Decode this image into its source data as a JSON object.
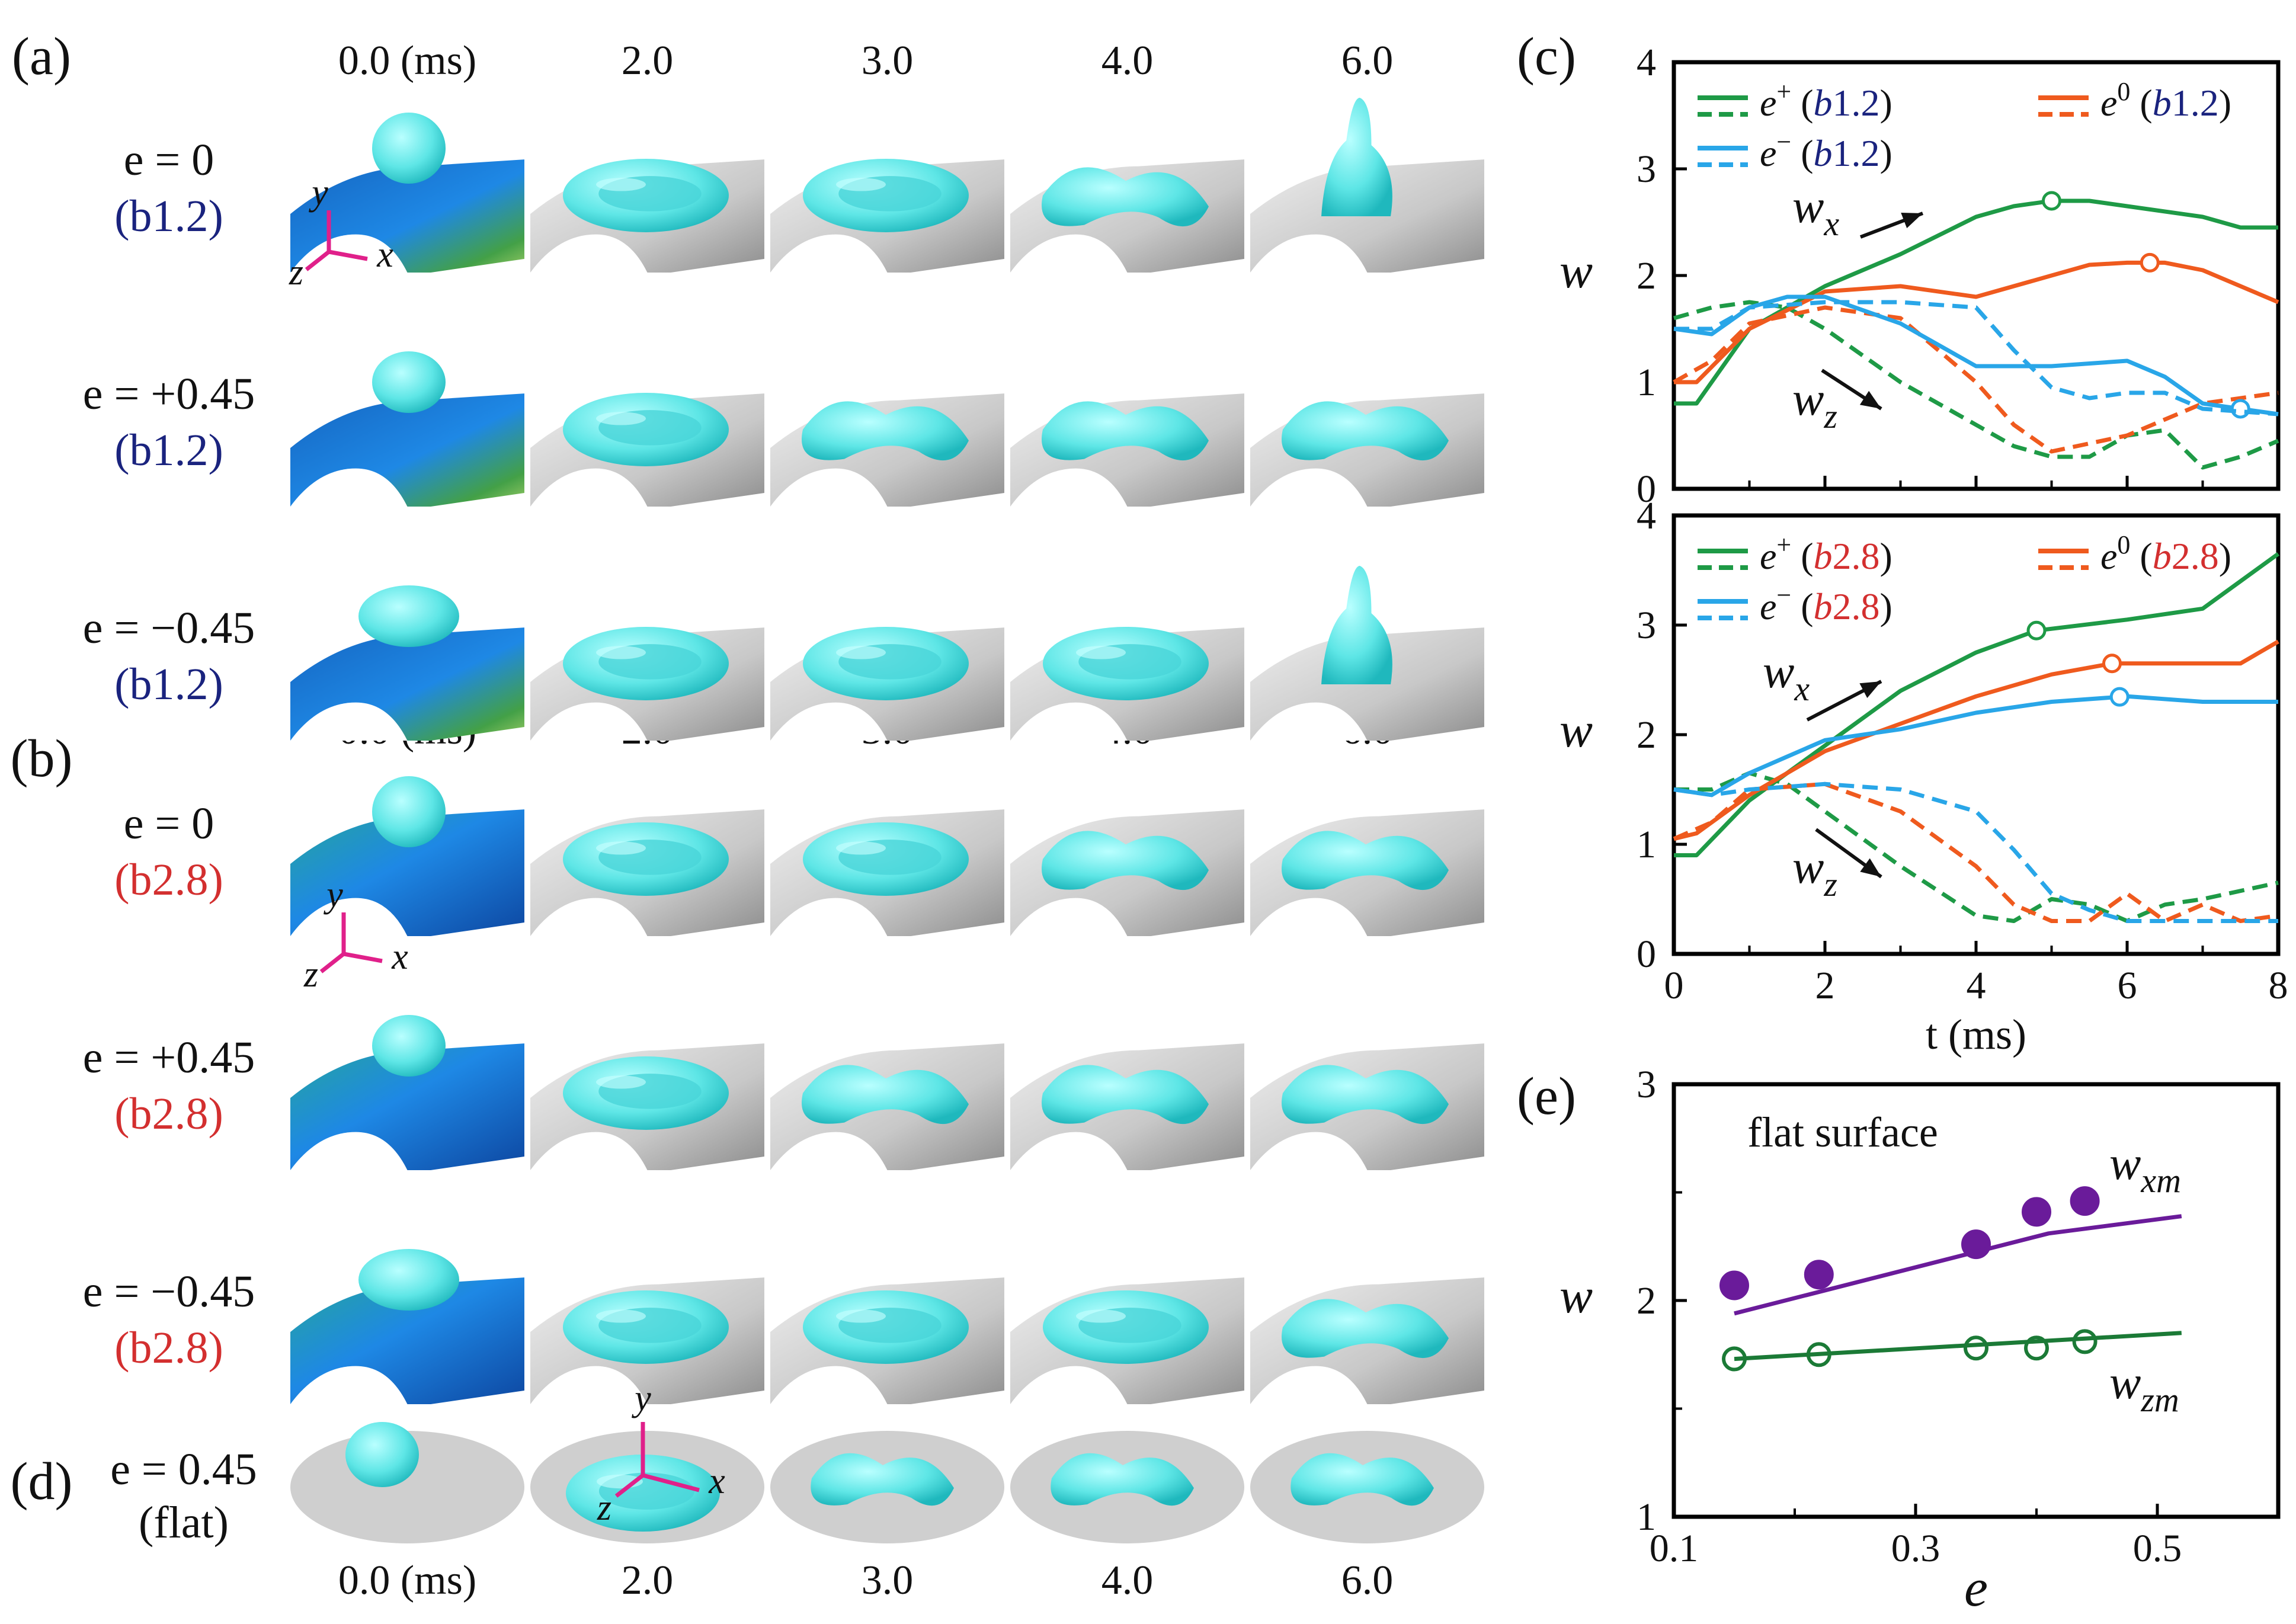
{
  "panels": {
    "a": "(a)",
    "b": "(b)",
    "c": "(c)",
    "d": "(d)",
    "e": "(e)"
  },
  "time_headers": [
    "0.0 (ms)",
    "2.0",
    "3.0",
    "4.0",
    "6.0"
  ],
  "rows_a": [
    {
      "eq": "e = 0",
      "sub": "(b1.2)",
      "sub_code": "b1.2"
    },
    {
      "eq": "e = +0.45",
      "sub": "(b1.2)",
      "sub_code": "b1.2"
    },
    {
      "eq": "e = −0.45",
      "sub": "(b1.2)",
      "sub_code": "b1.2"
    }
  ],
  "rows_b": [
    {
      "eq": "e = 0",
      "sub": "(b2.8)",
      "sub_code": "b2.8"
    },
    {
      "eq": "e = +0.45",
      "sub": "(b2.8)",
      "sub_code": "b2.8"
    },
    {
      "eq": "e = −0.45",
      "sub": "(b2.8)",
      "sub_code": "b2.8"
    }
  ],
  "row_d": {
    "eq": "e = 0.45",
    "sub": "(flat)"
  },
  "axes_labels": {
    "x": "x",
    "y": "y",
    "z": "z"
  },
  "colors": {
    "green": "#1e9a46",
    "orange": "#ef5a1e",
    "blue": "#29a6e8",
    "purple": "#6a1b9a",
    "dark_green": "#1b7a36",
    "drop": "#5ee6e6",
    "cylinder": "#cfcfcf",
    "label_blue": "#1a237e",
    "label_red": "#d32f2f"
  },
  "chart_data": [
    {
      "type": "line",
      "panel": "(c) top",
      "ylabel": "w",
      "xlim": [
        0,
        8
      ],
      "ylim": [
        0,
        4
      ],
      "xticks": [
        "0",
        "2",
        "4",
        "6",
        "8"
      ],
      "yticks": [
        "0",
        "1",
        "2",
        "3",
        "4"
      ],
      "legend": [
        "e+ (b1.2)",
        "e0 (b1.2)",
        "e− (b1.2)"
      ],
      "annotations": [
        "wx",
        "wz"
      ],
      "series": [
        {
          "name": "e+ (b1.2)",
          "style": "solid",
          "color": "green",
          "x": [
            0,
            0.3,
            1.0,
            2.0,
            3.0,
            4.0,
            4.5,
            5.0,
            5.5,
            6.0,
            7.0,
            7.5,
            8.0
          ],
          "y": [
            0.8,
            0.8,
            1.5,
            1.9,
            2.2,
            2.55,
            2.65,
            2.7,
            2.7,
            2.65,
            2.55,
            2.45,
            2.45
          ],
          "marker_x": 5.0
        },
        {
          "name": "e+ (b1.2)",
          "style": "dashed",
          "color": "green",
          "x": [
            0,
            0.5,
            1.0,
            1.5,
            2.0,
            3.0,
            4.0,
            4.5,
            5.0,
            5.5,
            6.0,
            6.5,
            7.0,
            7.5,
            8.0
          ],
          "y": [
            1.6,
            1.7,
            1.75,
            1.7,
            1.5,
            1.0,
            0.6,
            0.4,
            0.3,
            0.3,
            0.5,
            0.55,
            0.2,
            0.3,
            0.45
          ]
        },
        {
          "name": "e0 (b1.2)",
          "style": "solid",
          "color": "orange",
          "x": [
            0,
            0.3,
            1.0,
            2.0,
            3.0,
            4.0,
            5.0,
            5.5,
            6.0,
            6.5,
            7.0,
            8.0
          ],
          "y": [
            1.0,
            1.0,
            1.5,
            1.85,
            1.9,
            1.8,
            2.0,
            2.1,
            2.12,
            2.12,
            2.05,
            1.75
          ],
          "marker_x": 6.3
        },
        {
          "name": "e0 (b1.2)",
          "style": "dashed",
          "color": "orange",
          "x": [
            0,
            0.5,
            1.0,
            2.0,
            3.0,
            4.0,
            4.5,
            5.0,
            6.0,
            7.0,
            8.0
          ],
          "y": [
            1.0,
            1.2,
            1.55,
            1.7,
            1.6,
            1.0,
            0.6,
            0.35,
            0.5,
            0.8,
            0.9
          ]
        },
        {
          "name": "e− (b1.2)",
          "style": "solid",
          "color": "blue",
          "x": [
            0,
            0.5,
            1.0,
            1.5,
            2.0,
            3.0,
            4.0,
            5.0,
            6.0,
            6.5,
            7.0,
            7.5,
            8.0
          ],
          "y": [
            1.5,
            1.45,
            1.7,
            1.8,
            1.8,
            1.55,
            1.15,
            1.15,
            1.2,
            1.05,
            0.8,
            0.75,
            0.7
          ],
          "marker_x": 7.5
        },
        {
          "name": "e− (b1.2)",
          "style": "dashed",
          "color": "blue",
          "x": [
            0,
            0.5,
            1.0,
            2.0,
            3.0,
            4.0,
            4.5,
            5.0,
            5.5,
            6.0,
            6.5,
            7.0,
            8.0
          ],
          "y": [
            1.5,
            1.5,
            1.7,
            1.75,
            1.75,
            1.7,
            1.3,
            0.95,
            0.85,
            0.9,
            0.9,
            0.75,
            0.7
          ]
        }
      ]
    },
    {
      "type": "line",
      "panel": "(c) bottom",
      "xlabel": "t (ms)",
      "ylabel": "w",
      "xlim": [
        0,
        8
      ],
      "ylim": [
        0,
        4
      ],
      "xticks": [
        "0",
        "2",
        "4",
        "6",
        "8"
      ],
      "yticks": [
        "0",
        "1",
        "2",
        "3",
        "4"
      ],
      "legend": [
        "e+ (b2.8)",
        "e0 (b2.8)",
        "e− (b2.8)"
      ],
      "annotations": [
        "wx",
        "wz"
      ],
      "series": [
        {
          "name": "e+ (b2.8)",
          "style": "solid",
          "color": "green",
          "x": [
            0,
            0.3,
            1.0,
            2.0,
            3.0,
            4.0,
            4.8,
            6.0,
            7.0,
            7.5,
            8.0
          ],
          "y": [
            0.9,
            0.9,
            1.4,
            1.9,
            2.4,
            2.75,
            2.95,
            3.05,
            3.15,
            3.4,
            3.65
          ],
          "marker_x": 4.8
        },
        {
          "name": "e+ (b2.8)",
          "style": "dashed",
          "color": "green",
          "x": [
            0,
            0.5,
            1.0,
            1.5,
            2.0,
            3.0,
            4.0,
            4.5,
            5.0,
            5.5,
            6.0,
            6.5,
            7.0,
            8.0
          ],
          "y": [
            1.5,
            1.5,
            1.65,
            1.55,
            1.3,
            0.8,
            0.35,
            0.3,
            0.5,
            0.45,
            0.3,
            0.45,
            0.5,
            0.65
          ]
        },
        {
          "name": "e0 (b2.8)",
          "style": "solid",
          "color": "orange",
          "x": [
            0,
            0.3,
            1.0,
            2.0,
            3.0,
            4.0,
            5.0,
            5.8,
            6.5,
            7.5,
            8.0
          ],
          "y": [
            1.05,
            1.1,
            1.45,
            1.85,
            2.1,
            2.35,
            2.55,
            2.65,
            2.65,
            2.65,
            2.85
          ],
          "marker_x": 5.8
        },
        {
          "name": "e0 (b2.8)",
          "style": "dashed",
          "color": "orange",
          "x": [
            0,
            0.5,
            1.0,
            2.0,
            3.0,
            4.0,
            4.5,
            5.0,
            5.5,
            6.0,
            6.5,
            7.0,
            7.5,
            8.0
          ],
          "y": [
            1.05,
            1.2,
            1.5,
            1.55,
            1.3,
            0.8,
            0.45,
            0.3,
            0.3,
            0.55,
            0.3,
            0.45,
            0.3,
            0.35
          ]
        },
        {
          "name": "e− (b2.8)",
          "style": "solid",
          "color": "blue",
          "x": [
            0,
            0.5,
            1.0,
            1.5,
            2.0,
            3.0,
            4.0,
            5.0,
            6.0,
            7.0,
            8.0
          ],
          "y": [
            1.5,
            1.45,
            1.65,
            1.8,
            1.95,
            2.05,
            2.2,
            2.3,
            2.35,
            2.3,
            2.3
          ],
          "marker_x": 5.9
        },
        {
          "name": "e− (b2.8)",
          "style": "dashed",
          "color": "blue",
          "x": [
            0,
            0.5,
            1.0,
            2.0,
            3.0,
            4.0,
            4.5,
            5.0,
            5.5,
            6.0,
            6.5,
            7.0,
            8.0
          ],
          "y": [
            1.5,
            1.45,
            1.5,
            1.55,
            1.5,
            1.3,
            0.95,
            0.55,
            0.4,
            0.3,
            0.3,
            0.3,
            0.3
          ]
        }
      ]
    },
    {
      "type": "scatter",
      "panel": "(e)",
      "title": "flat surface",
      "xlabel": "e",
      "ylabel": "w",
      "xlim": [
        0.1,
        0.6
      ],
      "ylim": [
        1,
        3
      ],
      "xticks": [
        "0.1",
        "0.3",
        "0.5"
      ],
      "yticks": [
        "1",
        "2",
        "3"
      ],
      "annotations": [
        "wxm",
        "wzm"
      ],
      "series": [
        {
          "name": "wxm",
          "kind": "filled_points",
          "color": "purple",
          "x": [
            0.15,
            0.22,
            0.35,
            0.4,
            0.44
          ],
          "y": [
            2.07,
            2.12,
            2.26,
            2.41,
            2.46
          ]
        },
        {
          "name": "wxm",
          "kind": "line",
          "color": "purple",
          "x": [
            0.15,
            0.41,
            0.52
          ],
          "y": [
            1.94,
            2.31,
            2.39
          ]
        },
        {
          "name": "wzm",
          "kind": "open_points",
          "color": "dark_green",
          "x": [
            0.15,
            0.22,
            0.35,
            0.4,
            0.44
          ],
          "y": [
            1.73,
            1.75,
            1.78,
            1.78,
            1.81
          ]
        },
        {
          "name": "wzm",
          "kind": "line",
          "color": "dark_green",
          "x": [
            0.15,
            0.52
          ],
          "y": [
            1.73,
            1.85
          ]
        }
      ]
    }
  ]
}
